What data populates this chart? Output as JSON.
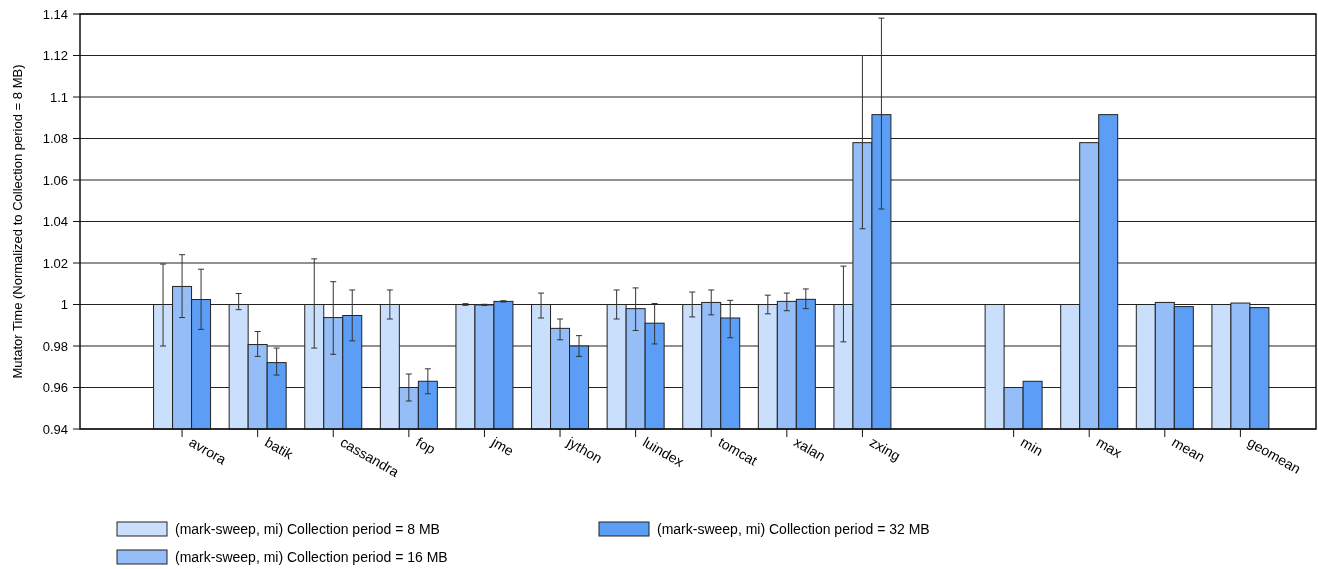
{
  "chart_data": {
    "type": "bar",
    "ylabel": "Mutator Time (Normalized to Collection period = 8 MB)",
    "categories": [
      "avrora",
      "batik",
      "cassandra",
      "fop",
      "jme",
      "jython",
      "luindex",
      "tomcat",
      "xalan",
      "zxing",
      null,
      "min",
      "max",
      "mean",
      "geomean"
    ],
    "series": [
      {
        "name": "(mark-sweep, mi) Collection period = 8 MB",
        "color": "#cadffc",
        "values": [
          1,
          1,
          1,
          1,
          1,
          1,
          1,
          1,
          1,
          1,
          null,
          1,
          1,
          1,
          1
        ],
        "errors": [
          [
            0.98,
            1.0195
          ],
          [
            0.9975,
            1.0053
          ],
          [
            0.979,
            1.022
          ],
          [
            0.993,
            1.007
          ],
          [
            0.9996,
            1.0004
          ],
          [
            0.9935,
            1.0055
          ],
          [
            0.993,
            1.007
          ],
          [
            0.994,
            1.006
          ],
          [
            0.9955,
            1.0045
          ],
          [
            0.982,
            1.0185
          ],
          null,
          null,
          null,
          null,
          null
        ]
      },
      {
        "name": "(mark-sweep, mi) Collection period = 16 MB",
        "color": "#95bdf7",
        "values": [
          1.0087,
          0.9807,
          0.9937,
          0.96,
          0.9998,
          0.9885,
          0.998,
          1.001,
          1.0015,
          1.078,
          null,
          0.96,
          1.078,
          1.001,
          1.0007
        ],
        "errors": [
          [
            0.9937,
            1.024
          ],
          [
            0.975,
            0.987
          ],
          [
            0.976,
            1.011
          ],
          [
            0.9535,
            0.9665
          ],
          [
            0.9995,
            1.0001
          ],
          [
            0.983,
            0.993
          ],
          [
            0.9875,
            1.008
          ],
          [
            0.995,
            1.007
          ],
          [
            0.997,
            1.0055
          ],
          [
            1.0365,
            1.12
          ],
          null,
          null,
          null,
          null,
          null
        ]
      },
      {
        "name": "(mark-sweep, mi) Collection period = 32 MB",
        "color": "#5c9ef5",
        "values": [
          1.0024,
          0.972,
          0.9947,
          0.963,
          1.0015,
          0.98,
          0.991,
          0.9935,
          1.0025,
          1.0915,
          null,
          0.963,
          1.0915,
          0.999,
          0.9985
        ],
        "errors": [
          [
            0.988,
            1.017
          ],
          [
            0.966,
            0.979
          ],
          [
            0.9825,
            1.007
          ],
          [
            0.957,
            0.969
          ],
          [
            1.0012,
            1.0018
          ],
          [
            0.975,
            0.985
          ],
          [
            0.981,
            1.0005
          ],
          [
            0.984,
            1.002
          ],
          [
            0.998,
            1.0075
          ],
          [
            1.046,
            1.138
          ],
          null,
          null,
          null,
          null,
          null
        ]
      }
    ],
    "ylim": [
      0.94,
      1.14
    ],
    "yticks": [
      0.94,
      0.96,
      0.98,
      1,
      1.02,
      1.04,
      1.06,
      1.08,
      1.1,
      1.12,
      1.14
    ],
    "grid": "y",
    "legend": "bottom"
  }
}
